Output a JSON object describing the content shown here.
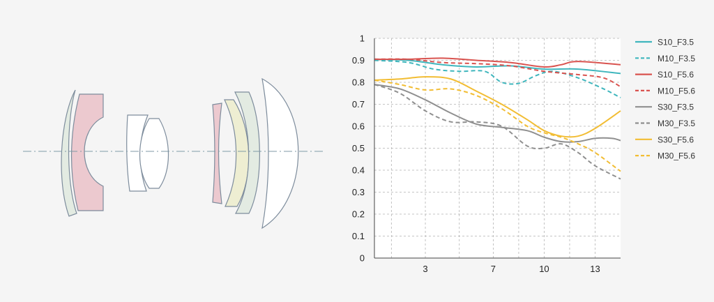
{
  "diagram": {
    "colors": {
      "outline": "#7d8c9c",
      "pink": "#ecc9cf",
      "green": "#e3ebe2",
      "yellow": "#eeeed2",
      "white": "#ffffff",
      "axis": "#7f9aa6"
    }
  },
  "chart_data": {
    "type": "line",
    "title": "",
    "xlabel": "",
    "ylabel": "",
    "xlim": [
      0,
      14.5
    ],
    "ylim": [
      0,
      1
    ],
    "xticks": [
      "3",
      "7",
      "10",
      "13"
    ],
    "yticks": [
      "0",
      "0.1",
      "0.2",
      "0.3",
      "0.4",
      "0.5",
      "0.6",
      "0.7",
      "0.8",
      "0.9",
      "1"
    ],
    "grid": true,
    "legend_position": "right",
    "series": [
      {
        "name": "S10_F3.5",
        "color": "#3fb6bd",
        "dash": "solid",
        "x": [
          0,
          2,
          4,
          6,
          8,
          10,
          12,
          14.5
        ],
        "y": [
          0.905,
          0.9,
          0.88,
          0.87,
          0.875,
          0.86,
          0.86,
          0.84
        ]
      },
      {
        "name": "M10_F3.5",
        "color": "#3fb6bd",
        "dash": "dashed",
        "x": [
          0,
          2,
          3.5,
          5,
          6.5,
          7.5,
          8.5,
          9.5,
          10.5,
          12,
          13.5,
          14.5
        ],
        "y": [
          0.9,
          0.89,
          0.86,
          0.85,
          0.85,
          0.8,
          0.795,
          0.83,
          0.85,
          0.82,
          0.77,
          0.73
        ]
      },
      {
        "name": "S10_F5.6",
        "color": "#d9534f",
        "dash": "solid",
        "x": [
          0,
          2,
          4,
          6,
          8,
          10,
          11,
          12,
          14.5
        ],
        "y": [
          0.905,
          0.905,
          0.91,
          0.9,
          0.89,
          0.87,
          0.88,
          0.895,
          0.88
        ]
      },
      {
        "name": "M10_F5.6",
        "color": "#d9534f",
        "dash": "dashed",
        "x": [
          0,
          2,
          4,
          6,
          8,
          10,
          12,
          13.5,
          14.5
        ],
        "y": [
          0.905,
          0.905,
          0.89,
          0.885,
          0.875,
          0.85,
          0.835,
          0.82,
          0.78
        ]
      },
      {
        "name": "S30_F3.5",
        "color": "#8f8f8f",
        "dash": "solid",
        "x": [
          0,
          1.5,
          3,
          4.5,
          6,
          7.5,
          9,
          10,
          11,
          12,
          13,
          14,
          14.5
        ],
        "y": [
          0.79,
          0.77,
          0.72,
          0.66,
          0.61,
          0.595,
          0.58,
          0.55,
          0.53,
          0.53,
          0.545,
          0.545,
          0.535
        ]
      },
      {
        "name": "M30_F3.5",
        "color": "#8f8f8f",
        "dash": "dashed",
        "x": [
          0,
          1.5,
          3,
          4.5,
          6,
          7.5,
          9,
          10,
          11,
          12,
          13,
          14.5
        ],
        "y": [
          0.79,
          0.75,
          0.67,
          0.62,
          0.62,
          0.6,
          0.51,
          0.5,
          0.52,
          0.48,
          0.42,
          0.36
        ]
      },
      {
        "name": "S30_F5.6",
        "color": "#f2bd33",
        "dash": "solid",
        "x": [
          0,
          1.5,
          3,
          4.5,
          6,
          7.5,
          9,
          10,
          11,
          12,
          13,
          14.5
        ],
        "y": [
          0.81,
          0.815,
          0.825,
          0.815,
          0.76,
          0.7,
          0.63,
          0.58,
          0.555,
          0.555,
          0.59,
          0.67
        ]
      },
      {
        "name": "M30_F5.6",
        "color": "#f2bd33",
        "dash": "dashed",
        "x": [
          0,
          1.5,
          3,
          4.5,
          6,
          7.5,
          9,
          10,
          11,
          12,
          13,
          14.5
        ],
        "y": [
          0.81,
          0.79,
          0.765,
          0.77,
          0.74,
          0.68,
          0.6,
          0.57,
          0.55,
          0.52,
          0.48,
          0.395
        ]
      }
    ]
  }
}
